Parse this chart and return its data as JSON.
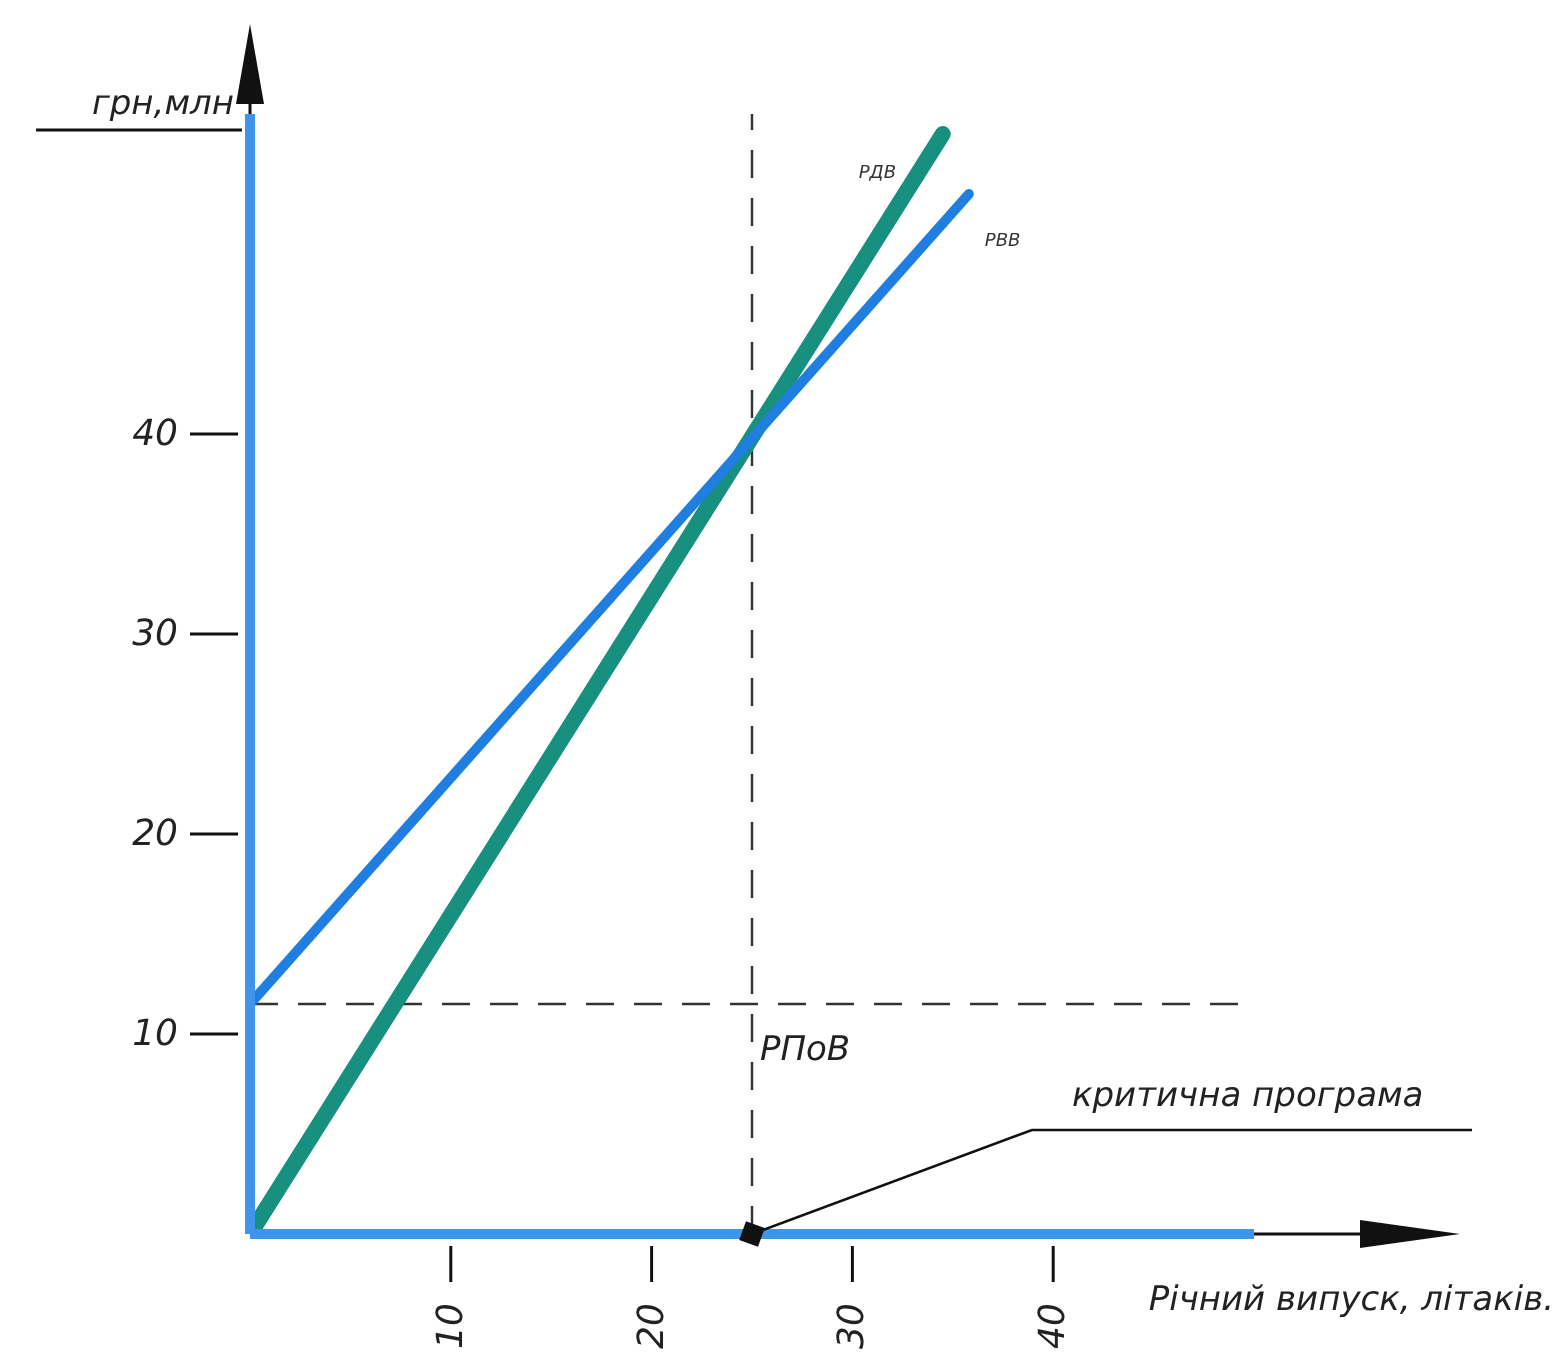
{
  "chart_data": {
    "type": "line",
    "xlabel": "Річний випуск, літаків.",
    "ylabel": "грн,млн",
    "xlim": [
      0,
      50
    ],
    "ylim": [
      0,
      56
    ],
    "xticks": [
      10,
      20,
      30,
      40
    ],
    "yticks": [
      10,
      20,
      30,
      40
    ],
    "grid": false,
    "legend": false,
    "marker": "none",
    "line_style": "solid",
    "series": [
      {
        "name": "РДВ",
        "color": "#17907f",
        "x": [
          0,
          34.5
        ],
        "values": [
          0,
          55
        ]
      },
      {
        "name": "РВВ",
        "color": "#1f7ee0",
        "x": [
          0,
          35.8
        ],
        "values": [
          11.5,
          52
        ]
      }
    ],
    "ref_lines": [
      {
        "axis": "x",
        "value": 25,
        "label": null,
        "color": "#333333",
        "line_style": "dashed"
      },
      {
        "axis": "y",
        "value": 11.5,
        "label": "РПоВ",
        "color": "#333333",
        "line_style": "dashed"
      }
    ],
    "annotations": [
      "критична програма"
    ]
  }
}
